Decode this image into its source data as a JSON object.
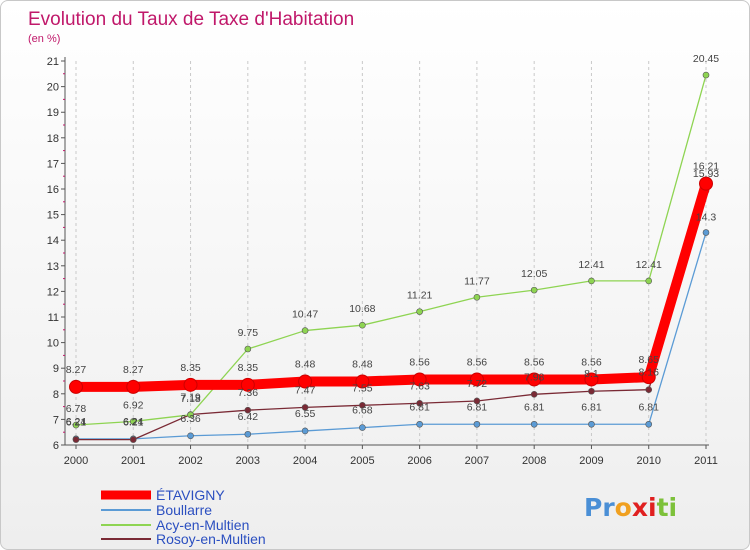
{
  "chart_data": {
    "type": "line",
    "title": "Evolution du Taux de Taxe d'Habitation",
    "subtitle": "(en %)",
    "xlabel": "",
    "ylabel": "",
    "x": [
      "2000",
      "2001",
      "2002",
      "2003",
      "2004",
      "2005",
      "2006",
      "2007",
      "2008",
      "2009",
      "2010",
      "2011"
    ],
    "ylim": [
      6,
      21
    ],
    "yticks": [
      6,
      7,
      8,
      9,
      10,
      11,
      12,
      13,
      14,
      15,
      16,
      17,
      18,
      19,
      20,
      21
    ],
    "grid": "vertical dashed",
    "legend_position": "bottom-left",
    "series": [
      {
        "name": "ÉTAVIGNY",
        "color": "#ff0000",
        "values": [
          8.27,
          8.27,
          8.35,
          8.35,
          8.48,
          8.48,
          8.56,
          8.56,
          8.56,
          8.56,
          8.65,
          16.21
        ],
        "labels": [
          "8.27",
          "8.27",
          "8.35",
          "8.35",
          "8.48",
          "8.48",
          "8.56",
          "8.56",
          "8.56",
          "8.56",
          "8.65",
          "16.21"
        ]
      },
      {
        "name": "Boullarre",
        "color": "#5b9bd5",
        "values": [
          6.24,
          6.24,
          6.36,
          6.42,
          6.55,
          6.68,
          6.81,
          6.81,
          6.81,
          6.81,
          6.81,
          14.3
        ],
        "labels": [
          "6.24",
          "6.24",
          "6.36",
          "6.42",
          "6.55",
          "6.68",
          "6.81",
          "6.81",
          "6.81",
          "6.81",
          "6.81",
          "14.3"
        ]
      },
      {
        "name": "Acy-en-Multien",
        "color": "#8ed452",
        "values": [
          6.78,
          6.92,
          7.18,
          9.75,
          10.47,
          10.68,
          11.21,
          11.77,
          12.05,
          12.41,
          12.41,
          20.45
        ],
        "labels": [
          "6.78",
          "6.92",
          "7.18",
          "9.75",
          "10.47",
          "10.68",
          "11.21",
          "11.77",
          "12.05",
          "12.41",
          "12.41",
          "20.45"
        ]
      },
      {
        "name": "Rosoy-en-Multien",
        "color": "#7a2a35",
        "values": [
          6.21,
          6.21,
          7.19,
          7.36,
          7.47,
          7.55,
          7.63,
          7.72,
          7.98,
          8.1,
          8.16,
          15.93
        ],
        "labels": [
          "6.21",
          "6.21",
          "7.19",
          "7.36",
          "7.47",
          "7.55",
          "7.63",
          "7.72",
          "7.98",
          "8.1",
          "8.16",
          "15.93"
        ]
      }
    ]
  },
  "watermark": {
    "letters": [
      "P",
      "r",
      "o",
      "x",
      "i",
      "t",
      "i"
    ],
    "colors": [
      "#4a8fd6",
      "#4a8fd6",
      "#f0a020",
      "#e02020",
      "#e02020",
      "#7dc13a",
      "#7dc13a"
    ]
  }
}
